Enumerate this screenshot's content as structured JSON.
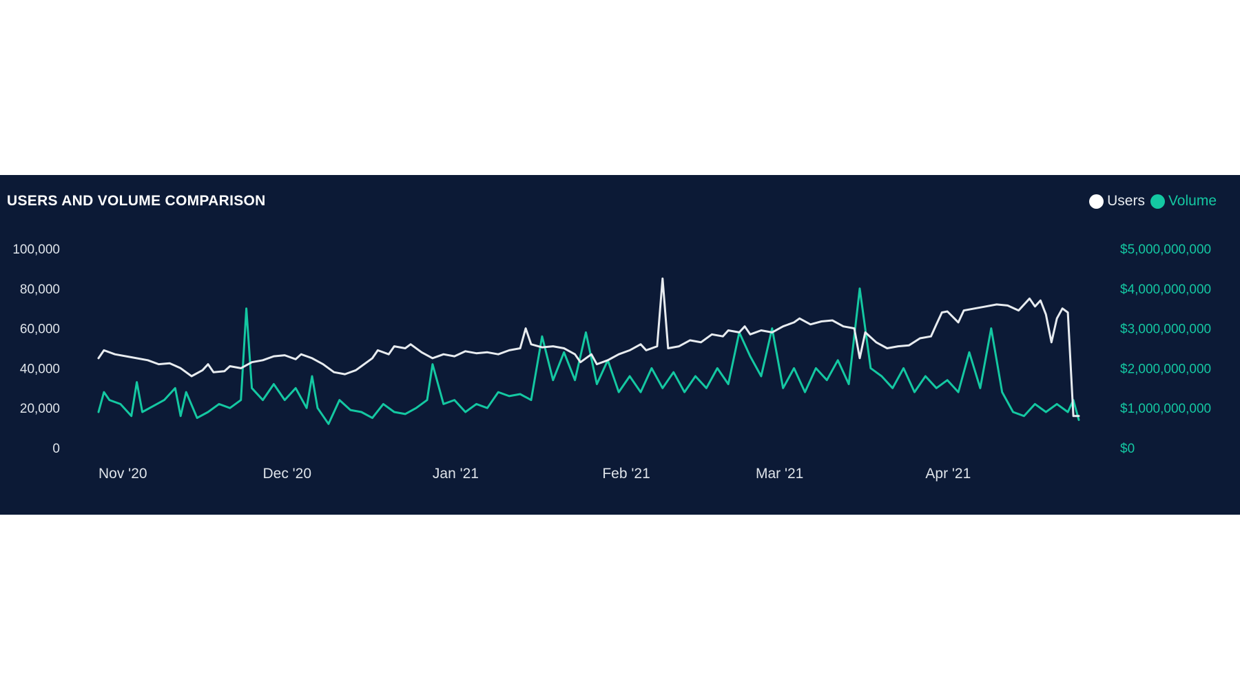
{
  "chart_data": {
    "type": "line",
    "title": "USERS AND VOLUME COMPARISON",
    "colors": {
      "background": "#0c1a36",
      "users": "#e8ecf0",
      "volume": "#14c8a2"
    },
    "legend": {
      "placement": "top-right"
    },
    "x_range": [
      "2020-11-01",
      "2021-04-29"
    ],
    "x_ticks": [
      {
        "label": "Nov '20",
        "date": "2020-11-01"
      },
      {
        "label": "Dec '20",
        "date": "2020-12-01"
      },
      {
        "label": "Jan '21",
        "date": "2021-01-01"
      },
      {
        "label": "Feb '21",
        "date": "2021-02-01"
      },
      {
        "label": "Mar '21",
        "date": "2021-03-01"
      },
      {
        "label": "Apr '21",
        "date": "2021-04-01"
      }
    ],
    "y_left": {
      "range": [
        0,
        100000
      ],
      "ticks": [
        "100,000",
        "80,000",
        "60,000",
        "40,000",
        "20,000",
        "0"
      ],
      "tick_values": [
        100000,
        80000,
        60000,
        40000,
        20000,
        0
      ]
    },
    "y_right": {
      "range": [
        0,
        5000000000
      ],
      "ticks": [
        "$5,000,000,000",
        "$4,000,000,000",
        "$3,000,000,000",
        "$2,000,000,000",
        "$1,000,000,000",
        "$0"
      ],
      "tick_values": [
        5000000000,
        4000000000,
        3000000000,
        2000000000,
        1000000000,
        0
      ]
    },
    "series": [
      {
        "name": "Users",
        "axis": "left",
        "points": [
          [
            "2020-11-01",
            45000
          ],
          [
            "2020-11-02",
            49000
          ],
          [
            "2020-11-04",
            47000
          ],
          [
            "2020-11-07",
            45500
          ],
          [
            "2020-11-10",
            44000
          ],
          [
            "2020-11-12",
            42000
          ],
          [
            "2020-11-14",
            42500
          ],
          [
            "2020-11-16",
            40000
          ],
          [
            "2020-11-18",
            36000
          ],
          [
            "2020-11-20",
            39000
          ],
          [
            "2020-11-21",
            42000
          ],
          [
            "2020-11-22",
            38000
          ],
          [
            "2020-11-24",
            38500
          ],
          [
            "2020-11-25",
            41000
          ],
          [
            "2020-11-27",
            40000
          ],
          [
            "2020-11-29",
            43000
          ],
          [
            "2020-12-01",
            44000
          ],
          [
            "2020-12-03",
            46000
          ],
          [
            "2020-12-05",
            46500
          ],
          [
            "2020-12-07",
            44500
          ],
          [
            "2020-12-08",
            47000
          ],
          [
            "2020-12-10",
            45000
          ],
          [
            "2020-12-12",
            42000
          ],
          [
            "2020-12-14",
            38000
          ],
          [
            "2020-12-16",
            37000
          ],
          [
            "2020-12-18",
            39000
          ],
          [
            "2020-12-19",
            41000
          ],
          [
            "2020-12-21",
            45000
          ],
          [
            "2020-12-22",
            49000
          ],
          [
            "2020-12-24",
            47000
          ],
          [
            "2020-12-25",
            51000
          ],
          [
            "2020-12-27",
            50000
          ],
          [
            "2020-12-28",
            52000
          ],
          [
            "2020-12-30",
            48000
          ],
          [
            "2021-01-01",
            45000
          ],
          [
            "2021-01-03",
            47000
          ],
          [
            "2021-01-05",
            46000
          ],
          [
            "2021-01-07",
            48500
          ],
          [
            "2021-01-09",
            47500
          ],
          [
            "2021-01-11",
            48000
          ],
          [
            "2021-01-13",
            47000
          ],
          [
            "2021-01-15",
            49000
          ],
          [
            "2021-01-17",
            50000
          ],
          [
            "2021-01-18",
            60000
          ],
          [
            "2021-01-19",
            52000
          ],
          [
            "2021-01-21",
            50500
          ],
          [
            "2021-01-23",
            51000
          ],
          [
            "2021-01-25",
            50000
          ],
          [
            "2021-01-27",
            47000
          ],
          [
            "2021-01-28",
            43000
          ],
          [
            "2021-01-30",
            47000
          ],
          [
            "2021-01-31",
            42000
          ],
          [
            "2021-02-02",
            44000
          ],
          [
            "2021-02-04",
            47000
          ],
          [
            "2021-02-06",
            49000
          ],
          [
            "2021-02-08",
            52000
          ],
          [
            "2021-02-09",
            49000
          ],
          [
            "2021-02-11",
            51000
          ],
          [
            "2021-02-12",
            85000
          ],
          [
            "2021-02-13",
            50000
          ],
          [
            "2021-02-15",
            51000
          ],
          [
            "2021-02-17",
            54000
          ],
          [
            "2021-02-19",
            53000
          ],
          [
            "2021-02-21",
            57000
          ],
          [
            "2021-02-23",
            56000
          ],
          [
            "2021-02-24",
            59000
          ],
          [
            "2021-02-26",
            58000
          ],
          [
            "2021-02-27",
            61000
          ],
          [
            "2021-02-28",
            57000
          ],
          [
            "2021-03-02",
            59000
          ],
          [
            "2021-03-04",
            58000
          ],
          [
            "2021-03-06",
            61000
          ],
          [
            "2021-03-08",
            63000
          ],
          [
            "2021-03-09",
            65000
          ],
          [
            "2021-03-11",
            62000
          ],
          [
            "2021-03-13",
            63500
          ],
          [
            "2021-03-15",
            64000
          ],
          [
            "2021-03-17",
            61000
          ],
          [
            "2021-03-19",
            60000
          ],
          [
            "2021-03-20",
            45000
          ],
          [
            "2021-03-21",
            58000
          ],
          [
            "2021-03-23",
            53000
          ],
          [
            "2021-03-25",
            50000
          ],
          [
            "2021-03-27",
            51000
          ],
          [
            "2021-03-29",
            51500
          ],
          [
            "2021-03-31",
            55000
          ],
          [
            "2021-04-02",
            56000
          ],
          [
            "2021-04-03",
            62000
          ],
          [
            "2021-04-04",
            68000
          ],
          [
            "2021-04-05",
            68500
          ],
          [
            "2021-04-07",
            63000
          ],
          [
            "2021-04-08",
            69000
          ],
          [
            "2021-04-10",
            70000
          ],
          [
            "2021-04-12",
            71000
          ],
          [
            "2021-04-14",
            72000
          ],
          [
            "2021-04-16",
            71500
          ],
          [
            "2021-04-18",
            69000
          ],
          [
            "2021-04-20",
            75000
          ],
          [
            "2021-04-21",
            71000
          ],
          [
            "2021-04-22",
            74000
          ],
          [
            "2021-04-23",
            67000
          ],
          [
            "2021-04-24",
            53000
          ],
          [
            "2021-04-25",
            65000
          ],
          [
            "2021-04-26",
            70000
          ],
          [
            "2021-04-27",
            68000
          ],
          [
            "2021-04-28",
            16000
          ],
          [
            "2021-04-29",
            16000
          ]
        ]
      },
      {
        "name": "Volume",
        "axis": "right",
        "points": [
          [
            "2020-11-01",
            900000000
          ],
          [
            "2020-11-02",
            1400000000
          ],
          [
            "2020-11-03",
            1200000000
          ],
          [
            "2020-11-05",
            1100000000
          ],
          [
            "2020-11-07",
            800000000
          ],
          [
            "2020-11-08",
            1650000000
          ],
          [
            "2020-11-09",
            900000000
          ],
          [
            "2020-11-11",
            1050000000
          ],
          [
            "2020-11-13",
            1200000000
          ],
          [
            "2020-11-15",
            1500000000
          ],
          [
            "2020-11-16",
            800000000
          ],
          [
            "2020-11-17",
            1400000000
          ],
          [
            "2020-11-19",
            750000000
          ],
          [
            "2020-11-21",
            900000000
          ],
          [
            "2020-11-23",
            1100000000
          ],
          [
            "2020-11-25",
            1000000000
          ],
          [
            "2020-11-27",
            1200000000
          ],
          [
            "2020-11-28",
            3500000000
          ],
          [
            "2020-11-29",
            1500000000
          ],
          [
            "2020-12-01",
            1200000000
          ],
          [
            "2020-12-03",
            1600000000
          ],
          [
            "2020-12-05",
            1200000000
          ],
          [
            "2020-12-07",
            1500000000
          ],
          [
            "2020-12-09",
            1000000000
          ],
          [
            "2020-12-10",
            1800000000
          ],
          [
            "2020-12-11",
            1000000000
          ],
          [
            "2020-12-13",
            600000000
          ],
          [
            "2020-12-15",
            1200000000
          ],
          [
            "2020-12-17",
            950000000
          ],
          [
            "2020-12-19",
            900000000
          ],
          [
            "2020-12-21",
            750000000
          ],
          [
            "2020-12-23",
            1100000000
          ],
          [
            "2020-12-25",
            900000000
          ],
          [
            "2020-12-27",
            850000000
          ],
          [
            "2020-12-29",
            1000000000
          ],
          [
            "2020-12-31",
            1200000000
          ],
          [
            "2021-01-01",
            2100000000
          ],
          [
            "2021-01-03",
            1100000000
          ],
          [
            "2021-01-05",
            1200000000
          ],
          [
            "2021-01-07",
            900000000
          ],
          [
            "2021-01-09",
            1100000000
          ],
          [
            "2021-01-11",
            1000000000
          ],
          [
            "2021-01-13",
            1400000000
          ],
          [
            "2021-01-15",
            1300000000
          ],
          [
            "2021-01-17",
            1350000000
          ],
          [
            "2021-01-19",
            1200000000
          ],
          [
            "2021-01-21",
            2800000000
          ],
          [
            "2021-01-23",
            1700000000
          ],
          [
            "2021-01-25",
            2400000000
          ],
          [
            "2021-01-27",
            1700000000
          ],
          [
            "2021-01-29",
            2900000000
          ],
          [
            "2021-01-31",
            1600000000
          ],
          [
            "2021-02-02",
            2200000000
          ],
          [
            "2021-02-04",
            1400000000
          ],
          [
            "2021-02-06",
            1800000000
          ],
          [
            "2021-02-08",
            1400000000
          ],
          [
            "2021-02-10",
            2000000000
          ],
          [
            "2021-02-12",
            1500000000
          ],
          [
            "2021-02-14",
            1900000000
          ],
          [
            "2021-02-16",
            1400000000
          ],
          [
            "2021-02-18",
            1800000000
          ],
          [
            "2021-02-20",
            1500000000
          ],
          [
            "2021-02-22",
            2000000000
          ],
          [
            "2021-02-24",
            1600000000
          ],
          [
            "2021-02-26",
            2900000000
          ],
          [
            "2021-02-28",
            2300000000
          ],
          [
            "2021-03-02",
            1800000000
          ],
          [
            "2021-03-04",
            3000000000
          ],
          [
            "2021-03-06",
            1500000000
          ],
          [
            "2021-03-08",
            2000000000
          ],
          [
            "2021-03-10",
            1400000000
          ],
          [
            "2021-03-12",
            2000000000
          ],
          [
            "2021-03-14",
            1700000000
          ],
          [
            "2021-03-16",
            2200000000
          ],
          [
            "2021-03-18",
            1600000000
          ],
          [
            "2021-03-20",
            4000000000
          ],
          [
            "2021-03-22",
            2000000000
          ],
          [
            "2021-03-24",
            1800000000
          ],
          [
            "2021-03-26",
            1500000000
          ],
          [
            "2021-03-28",
            2000000000
          ],
          [
            "2021-03-30",
            1400000000
          ],
          [
            "2021-04-01",
            1800000000
          ],
          [
            "2021-04-03",
            1500000000
          ],
          [
            "2021-04-05",
            1700000000
          ],
          [
            "2021-04-07",
            1400000000
          ],
          [
            "2021-04-09",
            2400000000
          ],
          [
            "2021-04-11",
            1500000000
          ],
          [
            "2021-04-13",
            3000000000
          ],
          [
            "2021-04-15",
            1400000000
          ],
          [
            "2021-04-17",
            900000000
          ],
          [
            "2021-04-19",
            800000000
          ],
          [
            "2021-04-21",
            1100000000
          ],
          [
            "2021-04-23",
            900000000
          ],
          [
            "2021-04-25",
            1100000000
          ],
          [
            "2021-04-27",
            900000000
          ],
          [
            "2021-04-28",
            1200000000
          ],
          [
            "2021-04-29",
            700000000
          ]
        ]
      }
    ]
  }
}
